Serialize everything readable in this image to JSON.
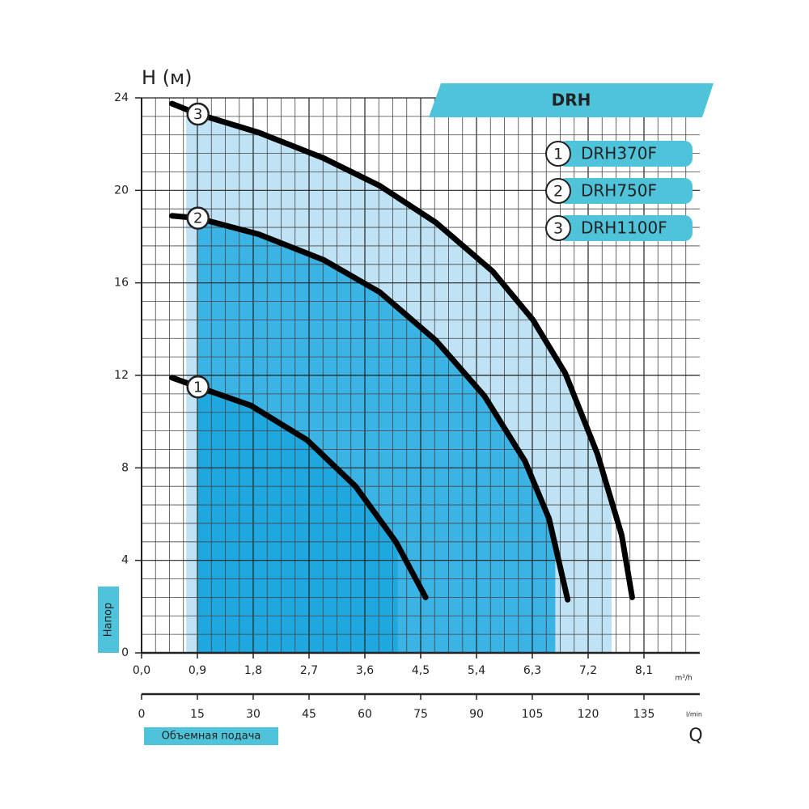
{
  "chart_data": {
    "type": "line",
    "title": "DRH",
    "y_label": "H (м)",
    "y_caption": "Напор",
    "x_caption": "Объемная подача",
    "x_symbol": "Q",
    "x_unit": "m³/h",
    "x2_unit": "l/min",
    "xlim": [
      0,
      9
    ],
    "ylim": [
      0,
      24
    ],
    "x2lim": [
      0,
      150
    ],
    "xticks": [
      {
        "value": 0,
        "label": "0,0"
      },
      {
        "value": 0.9,
        "label": "0,9"
      },
      {
        "value": 1.8,
        "label": "1,8"
      },
      {
        "value": 2.7,
        "label": "2,7"
      },
      {
        "value": 3.6,
        "label": "3,6"
      },
      {
        "value": 4.5,
        "label": "4,5"
      },
      {
        "value": 5.4,
        "label": "5,4"
      },
      {
        "value": 6.3,
        "label": "6,3"
      },
      {
        "value": 7.2,
        "label": "7,2"
      },
      {
        "value": 8.1,
        "label": "8,1"
      }
    ],
    "yticks": [
      0,
      4,
      8,
      12,
      16,
      20,
      24
    ],
    "x2ticks": [
      0,
      15,
      30,
      45,
      60,
      75,
      90,
      105,
      120,
      135
    ],
    "grid": true,
    "series": [
      {
        "name": "DRH370F",
        "marker": "1",
        "color": "#000000",
        "fill": "#1fa8df",
        "range": [
          0.91,
          4.13
        ],
        "x": [
          0.49,
          0.91,
          1.76,
          2.67,
          3.45,
          4.1,
          4.58
        ],
        "values": [
          11.9,
          11.5,
          10.7,
          9.2,
          7.2,
          4.8,
          2.4
        ]
      },
      {
        "name": "DRH750F",
        "marker": "2",
        "color": "#000000",
        "fill": "#3bb3e4",
        "range": [
          0.91,
          6.67
        ],
        "x": [
          0.49,
          0.91,
          1.89,
          2.93,
          3.84,
          4.75,
          5.53,
          6.18,
          6.57,
          6.87
        ],
        "values": [
          18.9,
          18.8,
          18.1,
          17.0,
          15.6,
          13.5,
          11.1,
          8.3,
          5.8,
          2.3
        ]
      },
      {
        "name": "DRH1100F",
        "marker": "3",
        "color": "#000000",
        "fill": "#bfe3f5",
        "range": [
          0.72,
          7.58
        ],
        "x": [
          0.49,
          0.91,
          1.89,
          2.93,
          3.84,
          4.75,
          5.66,
          6.31,
          6.83,
          7.35,
          7.74,
          7.91
        ],
        "values": [
          23.75,
          23.3,
          22.5,
          21.4,
          20.2,
          18.6,
          16.5,
          14.4,
          12.1,
          8.6,
          5.1,
          2.4
        ]
      }
    ]
  }
}
